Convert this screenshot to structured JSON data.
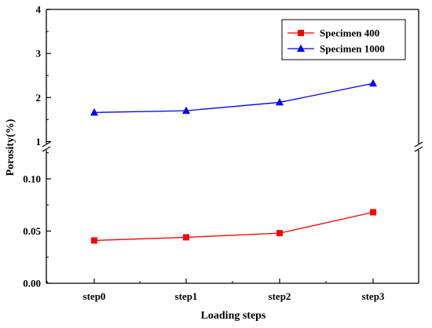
{
  "chart_data": {
    "type": "line",
    "xlabel": "Loading steps",
    "ylabel": "Porosity(%)",
    "categories": [
      "step0",
      "step1",
      "step2",
      "step3"
    ],
    "y_axis_broken": true,
    "ylim_lower": [
      0.0,
      0.13
    ],
    "ylim_upper": [
      0.9,
      4.0
    ],
    "yticks_lower": [
      "0.00",
      "0.05",
      "0.10"
    ],
    "yticks_upper": [
      "1",
      "2",
      "3",
      "4"
    ],
    "grid": false,
    "legend_position": "top-right",
    "series": [
      {
        "name": "Specimen 400",
        "color": "#ff0000",
        "marker": "square",
        "values": [
          0.041,
          0.044,
          0.048,
          0.068
        ]
      },
      {
        "name": "Specimen 1000",
        "color": "#0000ff",
        "marker": "triangle",
        "values": [
          1.66,
          1.7,
          1.89,
          2.32
        ]
      }
    ]
  }
}
